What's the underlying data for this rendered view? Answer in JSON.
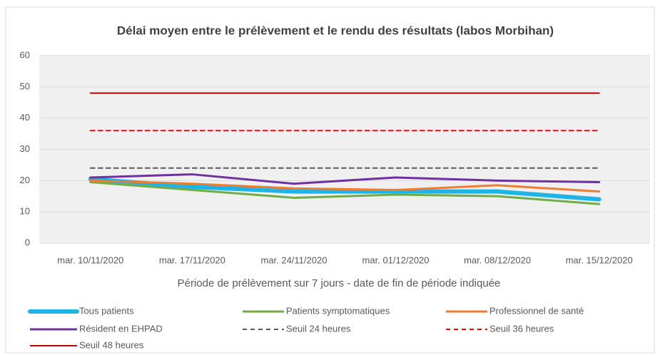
{
  "chart_data": {
    "type": "line",
    "title": "Délai moyen entre le prélèvement et le rendu des résultats (labos Morbihan)",
    "x_label": "Période de prélèvement sur 7 jours - date de fin de période indiquée",
    "categories": [
      "mar. 10/11/2020",
      "mar. 17/11/2020",
      "mar. 24/11/2020",
      "mar. 01/12/2020",
      "mar. 08/12/2020",
      "mar. 15/12/2020"
    ],
    "ylim": [
      0,
      60
    ],
    "yticks": [
      0,
      10,
      20,
      30,
      40,
      50,
      60
    ],
    "grid": true,
    "legend": "bottom",
    "series": [
      {
        "name": "Tous patients",
        "color": "#1fb4e8",
        "style": "thick",
        "values": [
          20.5,
          18,
          16.5,
          16.5,
          16.5,
          14
        ]
      },
      {
        "name": "Patients symptomatiques",
        "color": "#70ad47",
        "style": "solid",
        "values": [
          19.5,
          17,
          14.5,
          15.5,
          15,
          12.5
        ]
      },
      {
        "name": "Professionnel de santé",
        "color": "#ed7d31",
        "style": "solid",
        "values": [
          20,
          19,
          17.5,
          17,
          18.5,
          16.5
        ]
      },
      {
        "name": "Résident en EHPAD",
        "color": "#7030a0",
        "style": "solid",
        "values": [
          21,
          22,
          19,
          21,
          20,
          19.5
        ]
      },
      {
        "name": "Seuil 24 heures",
        "color": "#595959",
        "style": "dashed",
        "values": [
          24,
          24,
          24,
          24,
          24,
          24
        ]
      },
      {
        "name": "Seuil 36 heures",
        "color": "#ff0000",
        "style": "dashed",
        "values": [
          36,
          36,
          36,
          36,
          36,
          36
        ]
      },
      {
        "name": "Seuil 48 heures",
        "color": "#c00000",
        "style": "thin",
        "values": [
          48,
          48,
          48,
          48,
          48,
          48
        ]
      }
    ]
  }
}
